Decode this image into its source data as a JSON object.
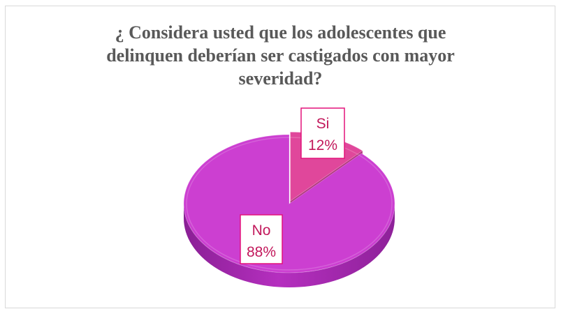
{
  "chart_data": {
    "type": "pie",
    "title_lines": [
      "¿ Considera usted que los adolescentes que",
      "delinquen deberían ser castigados con mayor",
      "severidad?"
    ],
    "categories": [
      "Si",
      "No"
    ],
    "values": [
      12,
      88
    ],
    "value_labels": [
      "12%",
      "88%"
    ],
    "colors": [
      "#e0479b",
      "#cc3fd1"
    ],
    "legend": "none"
  }
}
